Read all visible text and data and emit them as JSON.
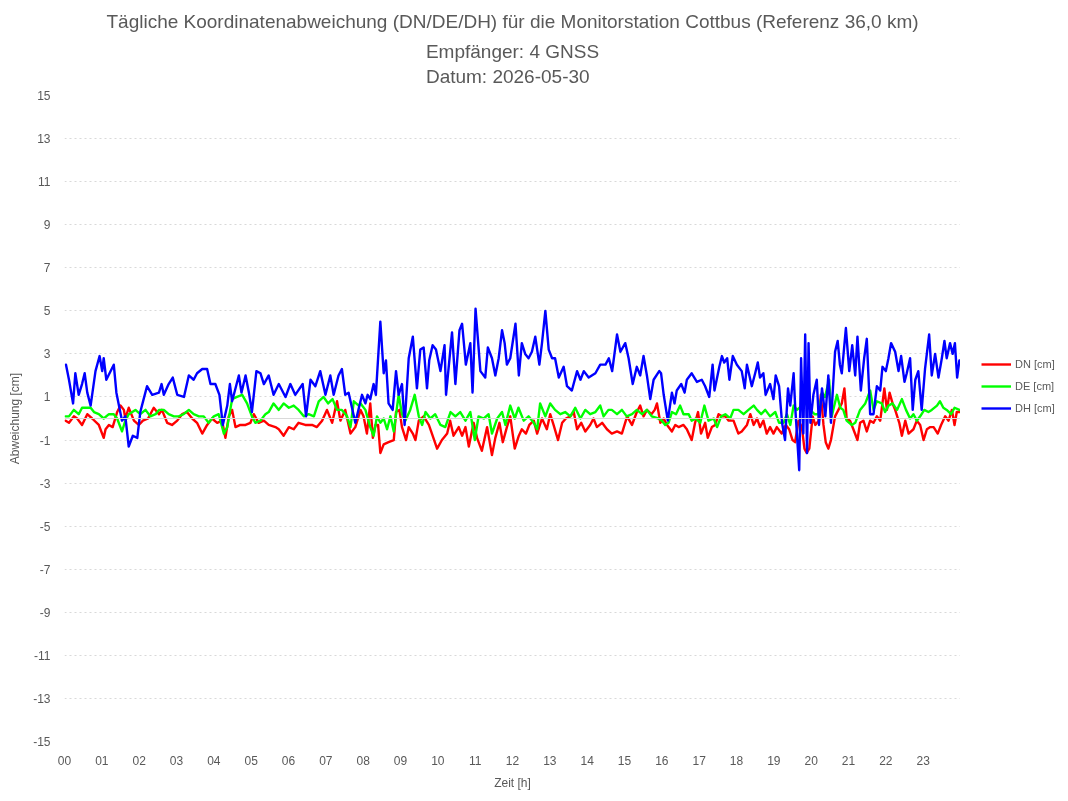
{
  "chart_data": {
    "type": "line",
    "title": "Tägliche Koordinatenabweichung (DN/DE/DH) für die Monitorstation Cottbus (Referenz 36,0 km)",
    "subtitle": "Empfänger: 4 GNSS\nDatum: 2026-05-30",
    "xlabel": "Zeit [h]",
    "ylabel": "Abweichung [cm]",
    "xlim": [
      0,
      24
    ],
    "ylim": [
      -15,
      15
    ],
    "xticks": [
      {
        "value": 0,
        "label": "00"
      },
      {
        "value": 1,
        "label": "01"
      },
      {
        "value": 2,
        "label": "02"
      },
      {
        "value": 3,
        "label": "03"
      },
      {
        "value": 4,
        "label": "04"
      },
      {
        "value": 5,
        "label": "05"
      },
      {
        "value": 6,
        "label": "06"
      },
      {
        "value": 7,
        "label": "07"
      },
      {
        "value": 8,
        "label": "08"
      },
      {
        "value": 9,
        "label": "09"
      },
      {
        "value": 10,
        "label": "10"
      },
      {
        "value": 11,
        "label": "11"
      },
      {
        "value": 12,
        "label": "12"
      },
      {
        "value": 13,
        "label": "13"
      },
      {
        "value": 14,
        "label": "14"
      },
      {
        "value": 15,
        "label": "15"
      },
      {
        "value": 16,
        "label": "16"
      },
      {
        "value": 17,
        "label": "17"
      },
      {
        "value": 18,
        "label": "18"
      },
      {
        "value": 19,
        "label": "19"
      },
      {
        "value": 20,
        "label": "20"
      },
      {
        "value": 21,
        "label": "21"
      },
      {
        "value": 22,
        "label": "22"
      },
      {
        "value": 23,
        "label": "23"
      }
    ],
    "yticks": [
      -15,
      -13,
      -11,
      -9,
      -7,
      -5,
      -3,
      -1,
      1,
      3,
      5,
      7,
      9,
      11,
      13,
      15
    ],
    "grid": "y",
    "legend": "right",
    "line_style": "solid",
    "ref_lines": [
      {
        "axis": "y",
        "value": 0,
        "color": "#d9d9d9"
      }
    ],
    "series": [
      {
        "name": "DN [cm]",
        "color": "#ff0000",
        "x": [
          0.03,
          0.12,
          0.25,
          0.34,
          0.47,
          0.61,
          0.74,
          0.92,
          1.05,
          1.1,
          1.19,
          1.29,
          1.41,
          1.5,
          1.59,
          1.63,
          1.72,
          1.86,
          1.99,
          2.1,
          2.24,
          2.39,
          2.53,
          2.61,
          2.75,
          2.88,
          3.02,
          3.15,
          3.28,
          3.42,
          3.55,
          3.69,
          3.82,
          3.95,
          4.09,
          4.22,
          4.31,
          4.4,
          4.49,
          4.58,
          4.71,
          4.85,
          4.98,
          5.07,
          5.2,
          5.34,
          5.47,
          5.65,
          5.74,
          5.87,
          6.01,
          6.14,
          6.27,
          6.45,
          6.63,
          6.76,
          6.9,
          7.03,
          7.17,
          7.3,
          7.39,
          7.52,
          7.66,
          7.79,
          7.93,
          8.01,
          8.1,
          8.19,
          8.26,
          8.33,
          8.4,
          8.46,
          8.55,
          8.68,
          8.82,
          8.88,
          8.97,
          9.04,
          9.15,
          9.22,
          9.33,
          9.4,
          9.49,
          9.62,
          9.76,
          9.86,
          9.98,
          10.11,
          10.25,
          10.33,
          10.42,
          10.56,
          10.65,
          10.74,
          10.83,
          10.96,
          11.05,
          11.18,
          11.32,
          11.45,
          11.54,
          11.65,
          11.74,
          11.85,
          11.94,
          12.06,
          12.17,
          12.25,
          12.36,
          12.45,
          12.57,
          12.66,
          12.79,
          12.92,
          13.01,
          13.1,
          13.22,
          13.33,
          13.43,
          13.55,
          13.64,
          13.73,
          13.84,
          13.95,
          14.08,
          14.17,
          14.26,
          14.4,
          14.53,
          14.66,
          14.8,
          14.93,
          15.07,
          15.2,
          15.33,
          15.42,
          15.51,
          15.6,
          15.72,
          15.81,
          15.87,
          15.96,
          16.05,
          16.14,
          16.27,
          16.36,
          16.45,
          16.58,
          16.67,
          16.8,
          16.89,
          16.97,
          17.05,
          17.16,
          17.23,
          17.34,
          17.43,
          17.52,
          17.61,
          17.7,
          17.79,
          17.92,
          18.05,
          18.14,
          18.28,
          18.37,
          18.46,
          18.55,
          18.63,
          18.72,
          18.81,
          18.9,
          18.99,
          19.08,
          19.21,
          19.32,
          19.41,
          19.5,
          19.57,
          19.66,
          19.75,
          19.82,
          19.88,
          19.95,
          20.04,
          20.11,
          20.2,
          20.26,
          20.33,
          20.39,
          20.46,
          20.53,
          20.64,
          20.73,
          20.82,
          20.89,
          20.95,
          21.04,
          21.13,
          21.24,
          21.31,
          21.4,
          21.49,
          21.58,
          21.67,
          21.76,
          21.85,
          21.96,
          22.03,
          22.1,
          22.18,
          22.25,
          22.36,
          22.43,
          22.52,
          22.61,
          22.74,
          22.83,
          22.92,
          23.01,
          23.1,
          23.19,
          23.28,
          23.39,
          23.48,
          23.59,
          23.68,
          23.77,
          23.84,
          23.9,
          23.97
        ],
        "values": [
          -0.1,
          -0.2,
          0.1,
          0.0,
          -0.3,
          0.2,
          0.0,
          -0.3,
          -0.9,
          -0.5,
          -0.3,
          -0.4,
          0.3,
          0.6,
          0.4,
          0.0,
          0.5,
          -0.1,
          -0.3,
          -0.1,
          0.0,
          0.5,
          0.2,
          0.4,
          -0.2,
          -0.3,
          -0.1,
          0.2,
          0.3,
          0.0,
          -0.2,
          -0.7,
          -0.3,
          0.0,
          -0.2,
          -0.1,
          -0.9,
          0.1,
          0.4,
          -0.4,
          -0.3,
          -0.3,
          -0.2,
          0.2,
          -0.2,
          -0.1,
          -0.3,
          -0.4,
          -0.5,
          -0.8,
          -0.4,
          -0.5,
          -0.2,
          -0.3,
          -0.3,
          -0.4,
          -0.1,
          0.4,
          -0.2,
          0.8,
          -0.1,
          0.4,
          -0.7,
          -0.4,
          0.4,
          0.1,
          -0.7,
          0.7,
          -0.9,
          -0.3,
          -0.3,
          -1.6,
          -1.2,
          -1.1,
          -1.0,
          0.3,
          0.4,
          -0.4,
          -1.0,
          -0.4,
          -0.7,
          -1.0,
          -0.1,
          0.1,
          -0.3,
          -0.8,
          -1.4,
          -1.0,
          -0.7,
          -0.1,
          -0.8,
          -0.4,
          -0.8,
          -0.4,
          -1.3,
          -0.2,
          -0.9,
          -1.5,
          -0.4,
          -1.7,
          -0.9,
          -0.2,
          -1.1,
          -0.4,
          0.1,
          -1.4,
          -0.8,
          -0.5,
          -0.7,
          -0.3,
          -0.1,
          -0.7,
          0.0,
          -0.5,
          0.2,
          -0.3,
          -1.0,
          -0.2,
          0.0,
          0.1,
          0.3,
          -0.5,
          -0.2,
          -0.6,
          -0.3,
          0.0,
          -0.4,
          -0.2,
          -0.5,
          -0.7,
          -0.6,
          -0.7,
          0.1,
          -0.3,
          0.3,
          0.6,
          0.1,
          0.4,
          0.2,
          0.4,
          0.7,
          -0.2,
          0.0,
          -0.3,
          -0.6,
          -0.3,
          -0.4,
          -0.3,
          -0.5,
          -1.0,
          -0.2,
          0.3,
          -0.7,
          -0.2,
          -0.9,
          -0.4,
          -0.3,
          0.2,
          0.1,
          0.1,
          -0.1,
          -0.1,
          -0.7,
          -0.6,
          -0.3,
          0.2,
          -0.3,
          0.0,
          -0.4,
          -0.1,
          -0.7,
          -0.4,
          -0.7,
          -0.4,
          -0.7,
          -0.3,
          -0.5,
          -1.0,
          -1.1,
          -0.1,
          -0.4,
          -1.4,
          -1.6,
          -1.4,
          0.1,
          -0.3,
          -0.1,
          1.1,
          -0.3,
          -1.1,
          -1.4,
          -1.0,
          0.1,
          0.4,
          0.7,
          1.4,
          0.0,
          -0.1,
          -0.5,
          -1.0,
          -0.2,
          -0.1,
          -0.6,
          -0.1,
          -0.2,
          0.1,
          -0.1,
          1.4,
          0.4,
          1.2,
          0.7,
          0.4,
          -0.2,
          -0.8,
          -0.1,
          -0.7,
          -0.5,
          -0.1,
          -0.3,
          -1.0,
          -0.5,
          -0.4,
          -0.4,
          -0.7,
          -0.3,
          0.1,
          -0.1,
          0.4,
          -0.3,
          0.3,
          0.3
        ]
      },
      {
        "name": "DE [cm]",
        "color": "#00ff00",
        "x": [
          0.03,
          0.12,
          0.25,
          0.38,
          0.47,
          0.61,
          0.7,
          0.79,
          0.92,
          1.05,
          1.19,
          1.32,
          1.41,
          1.54,
          1.63,
          1.72,
          1.9,
          2.03,
          2.17,
          2.3,
          2.44,
          2.53,
          2.66,
          2.79,
          2.93,
          3.06,
          3.19,
          3.33,
          3.46,
          3.6,
          3.73,
          3.86,
          4.0,
          4.13,
          4.27,
          4.36,
          4.49,
          4.62,
          4.76,
          4.89,
          5.02,
          5.11,
          5.25,
          5.38,
          5.47,
          5.6,
          5.74,
          5.87,
          6.01,
          6.14,
          6.27,
          6.41,
          6.54,
          6.68,
          6.81,
          6.94,
          7.06,
          7.18,
          7.3,
          7.43,
          7.57,
          7.66,
          7.75,
          7.88,
          7.93,
          8.06,
          8.19,
          8.28,
          8.37,
          8.46,
          8.55,
          8.64,
          8.73,
          8.82,
          8.95,
          9.04,
          9.13,
          9.26,
          9.38,
          9.49,
          9.58,
          9.67,
          9.8,
          9.93,
          10.07,
          10.2,
          10.34,
          10.47,
          10.6,
          10.74,
          10.87,
          10.99,
          11.09,
          11.23,
          11.36,
          11.45,
          11.59,
          11.72,
          11.81,
          11.94,
          12.06,
          12.16,
          12.3,
          12.43,
          12.57,
          12.66,
          12.74,
          12.88,
          13.01,
          13.14,
          13.28,
          13.41,
          13.55,
          13.68,
          13.82,
          13.95,
          14.08,
          14.22,
          14.35,
          14.44,
          14.57,
          14.66,
          14.8,
          14.93,
          15.06,
          15.2,
          15.33,
          15.47,
          15.6,
          15.73,
          15.91,
          16.0,
          16.09,
          16.18,
          16.27,
          16.38,
          16.49,
          16.58,
          16.72,
          16.8,
          16.91,
          17.03,
          17.14,
          17.25,
          17.39,
          17.48,
          17.59,
          17.7,
          17.83,
          17.92,
          18.05,
          18.19,
          18.32,
          18.46,
          18.55,
          18.66,
          18.77,
          18.9,
          19.04,
          19.14,
          19.26,
          19.35,
          19.44,
          19.53,
          19.62,
          19.75,
          19.88,
          19.97,
          20.09,
          20.2,
          20.29,
          20.37,
          20.48,
          20.55,
          20.69,
          20.78,
          20.86,
          20.95,
          21.09,
          21.18,
          21.31,
          21.45,
          21.58,
          21.67,
          21.76,
          21.89,
          21.98,
          22.07,
          22.18,
          22.3,
          22.43,
          22.54,
          22.65,
          22.74,
          22.83,
          22.92,
          23.03,
          23.14,
          23.23,
          23.37,
          23.45,
          23.54,
          23.63,
          23.75,
          23.84,
          23.97
        ],
        "values": [
          0.1,
          0.1,
          0.4,
          0.2,
          0.5,
          0.5,
          0.5,
          0.3,
          0.2,
          0.0,
          0.2,
          0.2,
          0.0,
          -0.6,
          -0.1,
          0.2,
          0.4,
          0.2,
          0.4,
          0.1,
          0.2,
          0.4,
          0.4,
          0.2,
          0.1,
          0.1,
          0.2,
          0.4,
          0.2,
          0.1,
          0.1,
          -0.2,
          0.1,
          0.2,
          -0.7,
          -0.4,
          0.9,
          1.0,
          1.1,
          0.7,
          0.1,
          -0.2,
          -0.1,
          0.2,
          0.3,
          0.7,
          0.4,
          0.7,
          0.5,
          0.6,
          0.4,
          0.1,
          0.2,
          0.1,
          0.8,
          1.0,
          0.7,
          0.9,
          0.4,
          0.4,
          0.1,
          -0.4,
          0.8,
          0.6,
          0.7,
          0.4,
          -0.4,
          -0.8,
          0.1,
          -0.2,
          0.0,
          -0.5,
          0.1,
          -0.6,
          1.1,
          0.2,
          -0.1,
          0.4,
          1.1,
          0.1,
          -0.3,
          0.3,
          0.0,
          0.2,
          -0.3,
          -0.4,
          0.3,
          0.1,
          0.3,
          -0.1,
          0.3,
          -1.0,
          0.1,
          0.0,
          0.2,
          -0.7,
          0.0,
          0.3,
          -0.3,
          0.6,
          0.0,
          0.5,
          -0.1,
          0.1,
          -0.2,
          -0.5,
          0.7,
          0.1,
          0.7,
          0.4,
          0.2,
          0.3,
          0.1,
          0.5,
          0.0,
          0.4,
          0.2,
          0.3,
          0.6,
          0.1,
          0.4,
          0.4,
          0.2,
          0.4,
          0.1,
          0.2,
          0.4,
          0.2,
          0.4,
          0.1,
          0.0,
          -0.1,
          -0.3,
          -0.2,
          0.3,
          0.2,
          0.6,
          0.2,
          0.2,
          -0.1,
          0.0,
          -0.2,
          0.6,
          -0.1,
          0.0,
          -0.4,
          0.1,
          0.2,
          0.0,
          0.4,
          0.4,
          0.2,
          0.4,
          0.6,
          0.4,
          0.2,
          0.4,
          0.1,
          0.3,
          -0.2,
          -0.2,
          0.2,
          -0.3,
          0.6,
          0.4,
          0.6,
          0.7,
          0.4,
          0.2,
          0.2,
          1.2,
          1.0,
          1.8,
          0.1,
          1.1,
          0.5,
          0.4,
          -0.1,
          -0.3,
          -0.2,
          0.4,
          0.7,
          1.3,
          0.4,
          0.8,
          0.7,
          0.3,
          0.6,
          0.7,
          0.4,
          0.9,
          0.4,
          0.0,
          0.2,
          -0.1,
          0.1,
          0.4,
          0.3,
          0.4,
          0.6,
          0.8,
          0.5,
          0.4,
          0.2,
          0.5,
          0.4
        ]
      },
      {
        "name": "DH [cm]",
        "color": "#0000ff",
        "x": [
          0.04,
          0.12,
          0.23,
          0.29,
          0.38,
          0.47,
          0.54,
          0.61,
          0.7,
          0.83,
          0.94,
          1.01,
          1.05,
          1.12,
          1.32,
          1.39,
          1.54,
          1.63,
          1.72,
          1.83,
          1.95,
          2.03,
          2.12,
          2.21,
          2.35,
          2.53,
          2.6,
          2.66,
          2.79,
          2.9,
          3.02,
          3.2,
          3.33,
          3.46,
          3.55,
          3.69,
          3.82,
          3.91,
          4.04,
          4.15,
          4.24,
          4.36,
          4.43,
          4.49,
          4.67,
          4.74,
          4.85,
          4.94,
          5.02,
          5.14,
          5.25,
          5.34,
          5.47,
          5.6,
          5.74,
          5.92,
          6.05,
          6.18,
          6.38,
          6.47,
          6.59,
          6.72,
          6.85,
          6.99,
          7.12,
          7.21,
          7.34,
          7.43,
          7.52,
          7.61,
          7.79,
          7.97,
          8.06,
          8.12,
          8.19,
          8.28,
          8.34,
          8.46,
          8.55,
          8.61,
          8.68,
          8.79,
          8.88,
          8.95,
          9.04,
          9.11,
          9.22,
          9.33,
          9.44,
          9.53,
          9.62,
          9.71,
          9.77,
          9.86,
          9.95,
          10.07,
          10.18,
          10.22,
          10.38,
          10.47,
          10.58,
          10.65,
          10.75,
          10.87,
          10.93,
          11.01,
          11.14,
          11.27,
          11.34,
          11.45,
          11.54,
          11.63,
          11.72,
          11.79,
          11.85,
          11.94,
          12.08,
          12.17,
          12.25,
          12.34,
          12.43,
          12.52,
          12.61,
          12.72,
          12.79,
          12.88,
          12.97,
          13.06,
          13.14,
          13.24,
          13.37,
          13.46,
          13.59,
          13.73,
          13.82,
          13.91,
          14.04,
          14.22,
          14.35,
          14.49,
          14.58,
          14.67,
          14.8,
          14.89,
          15.02,
          15.11,
          15.22,
          15.33,
          15.42,
          15.51,
          15.6,
          15.69,
          15.78,
          15.93,
          15.98,
          16.05,
          16.16,
          16.27,
          16.34,
          16.4,
          16.52,
          16.61,
          16.67,
          16.8,
          16.94,
          17.07,
          17.16,
          17.27,
          17.36,
          17.41,
          17.54,
          17.61,
          17.67,
          17.75,
          17.81,
          17.9,
          18.01,
          18.14,
          18.22,
          18.28,
          18.41,
          18.5,
          18.57,
          18.63,
          18.72,
          18.78,
          18.9,
          18.99,
          19.05,
          19.14,
          19.22,
          19.3,
          19.38,
          19.44,
          19.53,
          19.57,
          19.68,
          19.73,
          19.79,
          19.84,
          19.89,
          19.93,
          19.98,
          20.06,
          20.15,
          20.21,
          20.29,
          20.38,
          20.46,
          20.53,
          20.64,
          20.71,
          20.77,
          20.82,
          20.93,
          21.02,
          21.1,
          21.18,
          21.24,
          21.33,
          21.42,
          21.49,
          21.58,
          21.67,
          21.76,
          21.85,
          21.91,
          22.0,
          22.07,
          22.14,
          22.25,
          22.34,
          22.41,
          22.5,
          22.56,
          22.65,
          22.72,
          22.79,
          22.87,
          22.96,
          23.05,
          23.16,
          23.23,
          23.32,
          23.41,
          23.5,
          23.57,
          23.63,
          23.72,
          23.79,
          23.85,
          23.91,
          23.97
        ],
        "values": [
          2.5,
          1.8,
          0.7,
          2.1,
          1.1,
          1.6,
          2.1,
          1.2,
          0.6,
          2.2,
          2.9,
          2.2,
          2.8,
          1.8,
          2.5,
          1.2,
          -0.1,
          0.1,
          -1.3,
          -0.8,
          -0.9,
          0.3,
          0.9,
          1.5,
          1.1,
          1.2,
          1.6,
          1.1,
          1.6,
          1.9,
          1.1,
          1.0,
          2.0,
          1.8,
          2.1,
          2.3,
          2.3,
          1.6,
          1.6,
          1.1,
          -0.3,
          0.6,
          1.6,
          0.8,
          2.0,
          1.2,
          2.0,
          1.2,
          0.3,
          2.2,
          2.1,
          1.6,
          2.0,
          1.1,
          1.6,
          1.0,
          1.6,
          1.1,
          1.6,
          0.1,
          1.8,
          1.5,
          2.2,
          1.1,
          2.0,
          1.1,
          2.0,
          2.3,
          1.1,
          1.2,
          -0.2,
          1.1,
          0.7,
          1.1,
          0.9,
          1.6,
          1.1,
          4.5,
          2.1,
          2.7,
          0.7,
          0.4,
          2.2,
          1.1,
          1.6,
          -0.3,
          2.8,
          3.8,
          1.4,
          3.2,
          3.3,
          1.4,
          2.7,
          3.4,
          3.2,
          2.2,
          3.4,
          1.1,
          4.0,
          1.6,
          4.1,
          4.4,
          2.5,
          3.5,
          1.2,
          5.1,
          2.2,
          1.9,
          3.3,
          2.8,
          2.0,
          2.8,
          4.1,
          3.5,
          2.5,
          2.8,
          4.4,
          2.0,
          3.5,
          3.0,
          2.8,
          3.1,
          3.8,
          2.5,
          3.5,
          5.0,
          3.2,
          2.8,
          2.8,
          1.9,
          2.4,
          1.5,
          1.3,
          2.2,
          1.8,
          2.2,
          1.9,
          2.1,
          2.5,
          2.5,
          2.8,
          2.2,
          3.9,
          3.1,
          3.5,
          2.8,
          1.6,
          2.4,
          2.0,
          2.9,
          2.0,
          0.9,
          1.8,
          2.2,
          2.1,
          1.1,
          -0.1,
          1.2,
          0.7,
          1.3,
          1.6,
          1.2,
          1.8,
          2.1,
          1.7,
          1.8,
          1.5,
          1.0,
          2.5,
          1.3,
          2.4,
          2.9,
          2.6,
          2.8,
          1.8,
          2.9,
          2.5,
          2.2,
          1.4,
          2.5,
          1.5,
          2.1,
          2.6,
          1.9,
          2.1,
          1.1,
          1.6,
          0.9,
          2.0,
          1.5,
          -0.2,
          -1.0,
          1.4,
          0.6,
          2.1,
          0.6,
          -2.4,
          2.8,
          -0.7,
          3.9,
          -1.6,
          3.5,
          -0.2,
          1.1,
          1.8,
          -0.3,
          1.4,
          0.1,
          2.0,
          -0.2,
          3.1,
          3.6,
          2.5,
          2.1,
          4.2,
          2.2,
          3.4,
          2.0,
          3.8,
          1.3,
          2.8,
          3.7,
          0.2,
          0.2,
          1.5,
          1.3,
          2.4,
          2.2,
          2.8,
          3.5,
          3.1,
          2.2,
          2.9,
          1.7,
          2.1,
          2.8,
          0.4,
          1.8,
          2.2,
          0.4,
          2.3,
          3.9,
          2.0,
          3.0,
          1.9,
          2.8,
          3.6,
          2.8,
          3.5,
          3.0,
          3.5,
          1.9,
          2.7
        ]
      }
    ]
  }
}
